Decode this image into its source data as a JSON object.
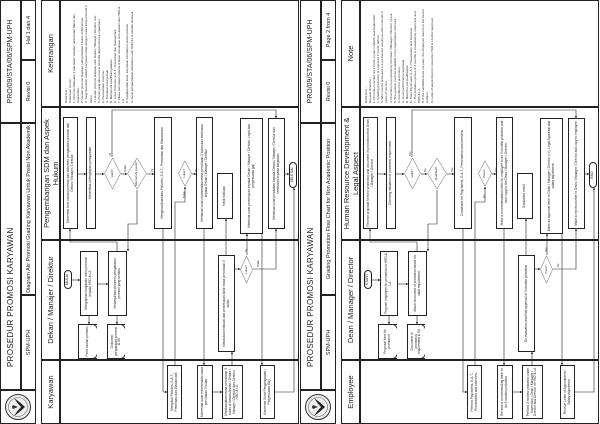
{
  "colors": {
    "line": "#222222",
    "background": "#ffffff"
  },
  "pages": [
    {
      "header": {
        "logo": "university-seal-logo",
        "title": "PROSEDUR PROMOSI KARYAWAN",
        "code": "PRO/09/STA/06/SPM-UPH",
        "dept": "SPM-UPH",
        "subtitle": "Diagram Alir Promosi Grading Karyawan Untuk Posisi Non Akademik",
        "revision": "Revisi 0",
        "page": "Hal 1 dari 4"
      },
      "lanes": [
        "Karyawan",
        "Dekan / Manajer / Direktur",
        "Pengembangan SDM dan Aspek Hukum",
        "Keterangan"
      ],
      "nodes": [
        "MULAI",
        "Mengajukan karyawan untuk promosi kepada HRD & LA",
        "Form usulan promosi",
        "Melampirkan dokumen persyaratan promosi yang berlaku",
        "Dokumen persyaratan promosi & SK",
        "Menerima form usulan promosi dan dokumen persyaratan promosi dari Dekan / Manajer / Direktur",
        "Memeriksa kelengkapan persyaratan",
        "Valid?",
        "Memenuhi syarat?",
        "Mengkoordinasikan Psikotes, E.A.T., Presentasi dan Wawancara",
        "Mengikuti Psikotes, E.A.T., Presentasi dan Wawancara",
        "Lulus?",
        "Membuat surat rekomendasi masa percobaan 3 bulan dan tembusan kepada Dekan / Manajer / Direktur",
        "Menerima surat rekomendasi masa percobaan 3 bulan",
        "Melaksanakan masa percobaan 3 bulan di bawah Atasan / Dekan / Manajer / Direktur dan Direktur HRD & LA",
        "Melakukan evaluasi dan persetujuan akhir masa percobaan 3 bulan",
        "Hasil evaluasi",
        "Lulus?",
        "Membuat surat persetujuan kepada Dekan / Manajer / Direktur, Legal dan penyesuaian gaji",
        "Membuat surat penolakan kepada Dekan / Manajer / Direktur dan tembusan kepada karyawan",
        "Menerima Surat Pengangkatan / Penyesuaian Gaji",
        "SELESAI"
      ],
      "yes": "Ya",
      "no": "Tidak",
      "notes": {
        "title": "Referensi :",
        "subtitle": "Ketentuan Umum :",
        "items": [
          "1. Promosi dilakukan 2 kali dalam setahun pada bulan Maret dan September.",
          "2. Usulan promosi diajukan paling lambat 1 bulan sebelumnya.",
          "3. Yang diusulkan adalah karyawan tetap dengan masa kerja minimal 2 tahun.",
          "4. Usulan promosi diajukan oleh Dekan / Manajer / Direktur unit.",
          "5. Posisi yang dituju harus tersedia dalam struktur organisasi.",
          "6. Persyaratan promosi:",
          "   A. Penilaian kinerja baik",
          "   B. Memenuhi kualifikasi jabatan",
          "   C. Lulus Psikotes, E.A.T., Presentasi dan Wawancara",
          "7. Masa percobaan selama 3 bulan dievaluasi oleh atasan dan HRD & LA.",
          "8. Apabila tidak lulus, karyawan kembali ke posisi semula.",
          "9. Surat pengangkatan diterbitkan oleh HRD & LA setelah disetujui."
        ]
      }
    },
    {
      "header": {
        "logo": "university-seal-logo",
        "title": "PROSEDUR PROMOSI KARYAWAN",
        "code": "PRO/09/STA/06/SPM-UPH",
        "dept": "SPM-UPH",
        "subtitle": "Grading Promotion Flow Chart for Non Academic Position",
        "revision": "Revisi 0",
        "page": "Page 2 from 4"
      },
      "lanes": [
        "Employee",
        "Dean / Manager / Director",
        "Human Resource Development & Legal Aspect",
        "Note"
      ],
      "nodes": [
        "START",
        "Propose employee for promotion to HRD & LA",
        "Proposal form for promotion",
        "Attach document of promotion based on valid requirement",
        "Document of promotion requirement & SK",
        "Receive proposal form for promotion and document of promotion from Dean / Manager / Director",
        "Checking validation of promotion requirement",
        "Valid?",
        "Qualified?",
        "Coordinate for Psychotest, E.A.T., Presentation and Interview",
        "Perform Psychotest, E.A.T., Presentation and Interview",
        "Pass?",
        "Make a recommendation letter for employee to do 3 months probation and sent copy to the Dean / Manager / Director",
        "Receive a recommending letter to do 3 months probation",
        "Perform 3 months probation under Supervisor / Dean / Manager / Director and Director of HRD & LA",
        "Do evaluation and final approval of 3 months probation",
        "Evaluation result",
        "Pass?",
        "Make an approval letter to Dean / Manager / Director (cc), Legal Appraisal and salary adjustment",
        "Make a rejection letter to Dean / Manager / Director and copy to employee",
        "Receive Letter of Appointment / Salary adjustment",
        "END"
      ],
      "yes": "Yes",
      "no": "No",
      "notes": {
        "title": "Reference :",
        "subtitle": "General Direction :",
        "items": [
          "1. Promotion carried out 2 times a year in March and September.",
          "2. Grading promotion is proposed 1 month before.",
          "3. Who can be proposed is a permanent employee with minimum 2 years of service.",
          "4. Promotion is proposed by the Dean / Manager / Director of unit.",
          "5. The position must be available in the organization structure.",
          "6. Condition for promotion:",
          "   A. Good performance appraisal",
          "   B. Meet the job qualification",
          "   C. Pass Psychotest, E.A.T., Presentation and Interview",
          "7. The probation period of 3 months is evaluated by supervisor and HRD & LA.",
          "8. If the candidate does not pass, the employee returns to the former position.",
          "9. Letter of appointment is issued by HRD & LA after approval."
        ]
      }
    }
  ]
}
